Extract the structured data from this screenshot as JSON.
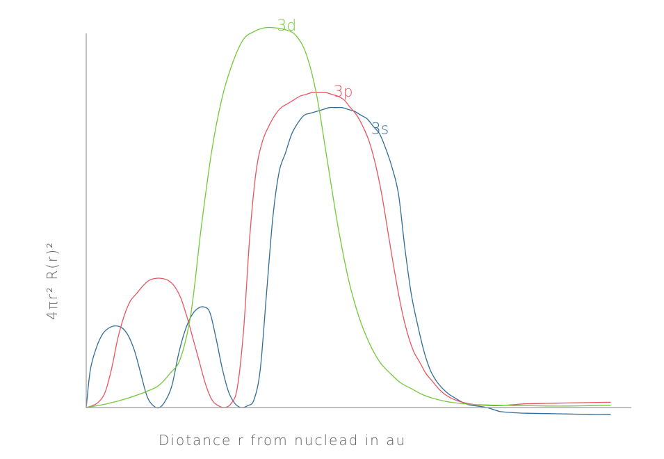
{
  "chart_data": {
    "type": "line",
    "title": "",
    "xlabel": "Diotance r from nuclead in au",
    "ylabel": "4πr² R(r)²",
    "xlim": [
      0,
      26
    ],
    "ylim": [
      0,
      1.0
    ],
    "grid": false,
    "legend": "inline labels at curve peaks",
    "series": [
      {
        "name": "3s",
        "color": "#2f6b9a",
        "x": [
          0,
          0.2,
          0.5,
          0.8,
          1.1,
          1.4,
          1.7,
          2.0,
          2.3,
          2.6,
          2.9,
          3.2,
          3.5,
          3.8,
          4.1,
          4.4,
          4.7,
          5.0,
          5.3,
          5.6,
          5.9,
          6.2,
          6.5,
          6.8,
          7.1,
          7.4,
          7.7,
          8.0,
          8.3,
          8.6,
          8.9,
          9.2,
          9.5,
          9.8,
          10.1,
          10.4,
          10.7,
          11.0,
          11.3,
          11.6,
          11.9,
          12.2,
          12.5,
          12.8,
          13.1,
          13.4,
          13.7,
          14.0,
          14.3,
          14.6,
          14.9,
          15.2,
          15.5,
          15.8,
          16.1,
          16.4,
          16.7,
          17.0,
          17.3,
          17.6,
          17.9,
          18.2,
          18.5,
          18.8,
          19.1,
          19.4,
          19.7,
          20.0,
          20.5,
          21.0,
          22.0,
          23.0,
          24.0,
          25.0
        ],
        "y": [
          0.0,
          0.1,
          0.16,
          0.195,
          0.21,
          0.215,
          0.21,
          0.19,
          0.15,
          0.09,
          0.03,
          0.005,
          0.0,
          0.02,
          0.06,
          0.14,
          0.2,
          0.24,
          0.26,
          0.265,
          0.25,
          0.18,
          0.1,
          0.04,
          0.01,
          0.0,
          0.005,
          0.02,
          0.1,
          0.3,
          0.5,
          0.62,
          0.67,
          0.72,
          0.75,
          0.77,
          0.775,
          0.78,
          0.785,
          0.79,
          0.79,
          0.79,
          0.785,
          0.78,
          0.77,
          0.76,
          0.74,
          0.72,
          0.68,
          0.63,
          0.56,
          0.42,
          0.3,
          0.22,
          0.15,
          0.1,
          0.07,
          0.05,
          0.035,
          0.025,
          0.015,
          0.008,
          0.005,
          0.003,
          0.0,
          -0.005,
          -0.01,
          -0.012,
          -0.014,
          -0.015,
          -0.016,
          -0.017,
          -0.018,
          -0.018
        ]
      },
      {
        "name": "3p",
        "color": "#e8545f",
        "x": [
          0,
          0.3,
          0.6,
          0.9,
          1.2,
          1.5,
          1.8,
          2.1,
          2.4,
          2.7,
          3.0,
          3.3,
          3.6,
          3.9,
          4.2,
          4.5,
          4.8,
          5.1,
          5.4,
          5.7,
          6.0,
          6.3,
          6.6,
          6.9,
          7.2,
          7.5,
          7.8,
          8.1,
          8.4,
          8.7,
          9.0,
          9.3,
          9.6,
          9.9,
          10.2,
          10.5,
          10.8,
          11.1,
          11.4,
          11.7,
          12.0,
          12.3,
          12.6,
          12.9,
          13.2,
          13.5,
          13.8,
          14.1,
          14.4,
          14.7,
          15.0,
          15.3,
          15.6,
          15.9,
          16.2,
          16.5,
          16.8,
          17.1,
          17.4,
          17.7,
          18.0,
          18.5,
          19.0,
          19.5,
          20.0,
          20.5,
          21.0,
          22.0,
          23.0,
          24.0,
          25.0
        ],
        "y": [
          0.0,
          0.005,
          0.015,
          0.04,
          0.1,
          0.18,
          0.24,
          0.28,
          0.3,
          0.32,
          0.335,
          0.34,
          0.34,
          0.335,
          0.32,
          0.29,
          0.24,
          0.18,
          0.12,
          0.06,
          0.02,
          0.005,
          0.0,
          0.01,
          0.05,
          0.2,
          0.45,
          0.62,
          0.7,
          0.74,
          0.77,
          0.79,
          0.8,
          0.81,
          0.82,
          0.825,
          0.83,
          0.83,
          0.83,
          0.825,
          0.82,
          0.81,
          0.79,
          0.77,
          0.74,
          0.7,
          0.64,
          0.56,
          0.46,
          0.36,
          0.27,
          0.2,
          0.15,
          0.12,
          0.09,
          0.07,
          0.05,
          0.035,
          0.025,
          0.018,
          0.013,
          0.008,
          0.006,
          0.005,
          0.006,
          0.008,
          0.01,
          0.011,
          0.012,
          0.013,
          0.014
        ]
      },
      {
        "name": "3d",
        "color": "#72c93a",
        "x": [
          0,
          1.0,
          2.0,
          3.0,
          3.5,
          4.0,
          4.5,
          5.0,
          5.5,
          6.0,
          6.5,
          7.0,
          7.5,
          8.0,
          8.5,
          9.0,
          9.5,
          10.0,
          10.5,
          11.0,
          11.5,
          12.0,
          12.5,
          13.0,
          13.5,
          14.0,
          14.5,
          15.0,
          15.5,
          16.0,
          16.5,
          17.0,
          17.5,
          18.0,
          18.5,
          19.0,
          19.5,
          20.0,
          20.5,
          21.0,
          22.0,
          23.0,
          24.0,
          25.0
        ],
        "y": [
          0.0,
          0.01,
          0.025,
          0.045,
          0.06,
          0.09,
          0.13,
          0.25,
          0.48,
          0.68,
          0.82,
          0.91,
          0.97,
          0.99,
          1.0,
          1.0,
          0.995,
          0.98,
          0.93,
          0.82,
          0.65,
          0.48,
          0.34,
          0.24,
          0.17,
          0.12,
          0.09,
          0.065,
          0.05,
          0.035,
          0.025,
          0.018,
          0.013,
          0.01,
          0.008,
          0.007,
          0.006,
          0.006,
          0.005,
          0.005,
          0.004,
          0.004,
          0.005,
          0.006
        ]
      }
    ]
  }
}
